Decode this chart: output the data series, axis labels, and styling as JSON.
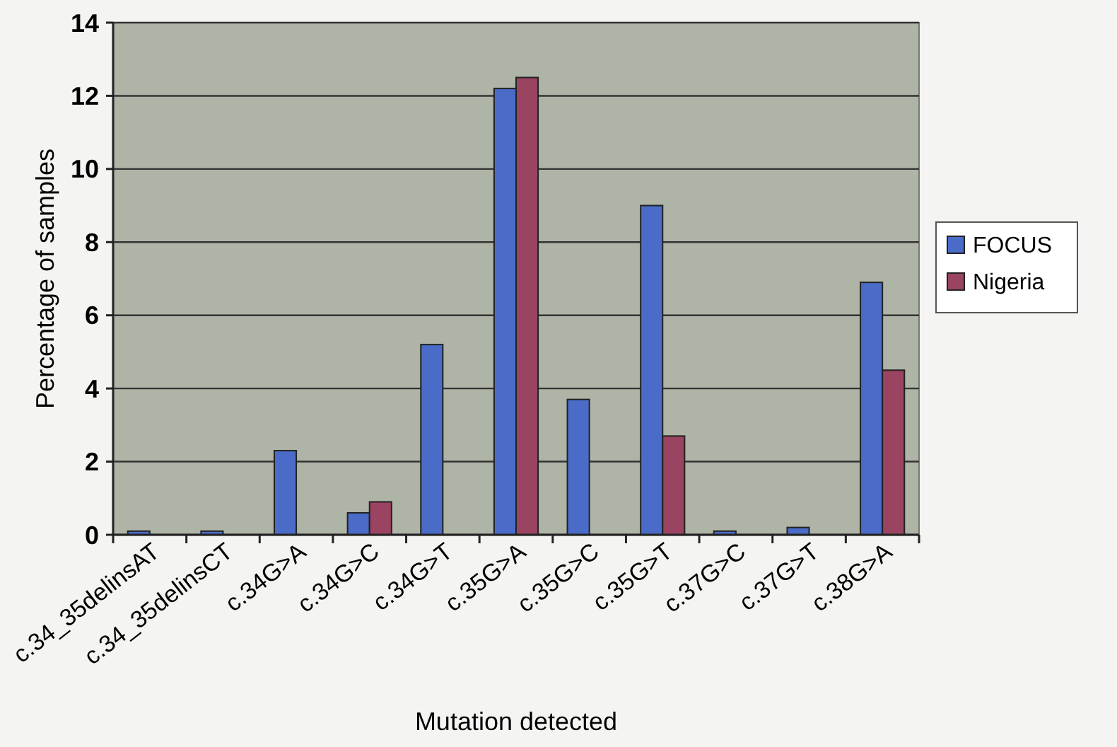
{
  "chart_data": {
    "type": "bar",
    "xlabel": "Mutation detected",
    "ylabel": "Percentage of samples",
    "categories": [
      "c.34_35delinsAT",
      "c.34_35delinsCT",
      "c.34G>A",
      "c.34G>C",
      "c.34G>T",
      "c.35G>A",
      "c.35G>C",
      "c.35G>T",
      "c.37G>C",
      "c.37G>T",
      "c.38G>A"
    ],
    "series": [
      {
        "name": "FOCUS",
        "color": "#4a6cc8",
        "values": [
          0.1,
          0.1,
          2.3,
          0.6,
          5.2,
          12.2,
          3.7,
          9.0,
          0.1,
          0.2,
          6.9
        ]
      },
      {
        "name": "Nigeria",
        "color": "#9a4462",
        "values": [
          0,
          0,
          0,
          0.9,
          0,
          12.5,
          0,
          2.7,
          0,
          0,
          4.5
        ]
      }
    ],
    "ylim": [
      0,
      14
    ],
    "yticks": [
      0,
      2,
      4,
      6,
      8,
      10,
      12,
      14
    ],
    "grid": "y",
    "legend": "right"
  }
}
